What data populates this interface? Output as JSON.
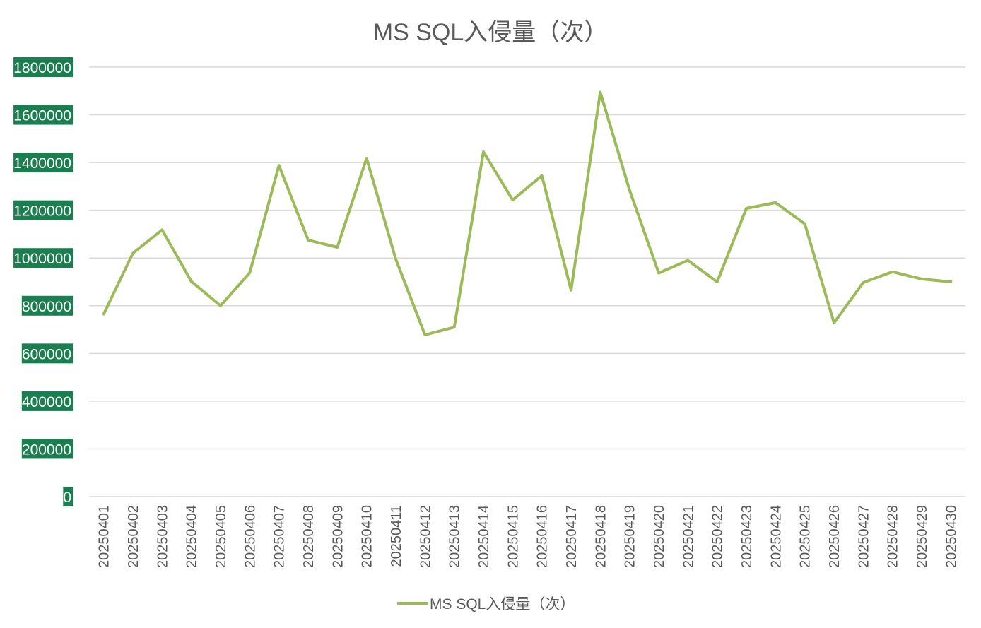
{
  "chart_data": {
    "type": "line",
    "title": "MS SQL入侵量（次）",
    "xlabel": "",
    "ylabel": "",
    "ylim": [
      0,
      1800000
    ],
    "ytick_step": 200000,
    "grid": true,
    "legend_position": "bottom",
    "categories": [
      "20250401",
      "20250402",
      "20250403",
      "20250404",
      "20250405",
      "20250406",
      "20250407",
      "20250408",
      "20250409",
      "20250410",
      "20250411",
      "20250412",
      "20250413",
      "20250414",
      "20250415",
      "20250416",
      "20250417",
      "20250418",
      "20250419",
      "20250420",
      "20250421",
      "20250422",
      "20250423",
      "20250424",
      "20250425",
      "20250426",
      "20250427",
      "20250428",
      "20250429",
      "20250430"
    ],
    "series": [
      {
        "name": "MS SQL入侵量（次）",
        "color": "#9bbb59",
        "values": [
          765000,
          1020000,
          1118000,
          902000,
          800000,
          938000,
          1388000,
          1075000,
          1045000,
          1418000,
          995000,
          678000,
          710000,
          1445000,
          1243000,
          1345000,
          865000,
          1695000,
          1285000,
          937000,
          990000,
          900000,
          1208000,
          1232000,
          1143000,
          728000,
          897000,
          942000,
          912000,
          900000
        ]
      }
    ],
    "ytick_label_background": "#1a7f4e",
    "gridline_color": "#d9d9d9"
  }
}
